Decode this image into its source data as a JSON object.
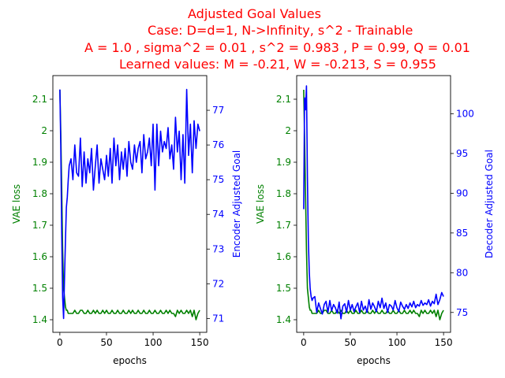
{
  "title_lines": [
    "Adjusted Goal Values",
    "Case: D=d=1, N->Infinity, s^2 - Trainable",
    "A = 1.0 , sigma^2 = 0.01 , s^2 = 0.983 , P = 0.99, Q = 0.01",
    "Learned values: M = -0.21, W = -0.213, S = 0.955"
  ],
  "colors": {
    "title": "#ff0000",
    "loss": "#008000",
    "goal": "#0000ff",
    "axis": "#000000"
  },
  "chart_data": [
    {
      "type": "line",
      "xlabel": "epochs",
      "ylabel_left": "VAE loss",
      "ylabel_right": "Encoder Adjusted Goal",
      "xlim": [
        -7.5,
        157.5
      ],
      "xticks": [
        0,
        50,
        100,
        150
      ],
      "ylim_left": [
        1.36,
        2.175
      ],
      "yticks_left": [
        1.4,
        1.5,
        1.6,
        1.7,
        1.8,
        1.9,
        2.0,
        2.1
      ],
      "ylim_right": [
        70.6,
        78.0
      ],
      "yticks_right": [
        71,
        72,
        73,
        74,
        75,
        76,
        77
      ],
      "series": [
        {
          "axis": "left",
          "color": "#008000",
          "x": [
            0,
            1,
            2,
            3,
            4,
            5,
            6,
            7,
            8,
            9,
            10,
            12,
            14,
            16,
            18,
            20,
            22,
            24,
            26,
            28,
            30,
            32,
            34,
            36,
            38,
            40,
            42,
            44,
            46,
            48,
            50,
            52,
            54,
            56,
            58,
            60,
            62,
            64,
            66,
            68,
            70,
            72,
            74,
            76,
            78,
            80,
            82,
            84,
            86,
            88,
            90,
            92,
            94,
            96,
            98,
            100,
            102,
            104,
            106,
            108,
            110,
            112,
            114,
            116,
            118,
            120,
            122,
            124,
            126,
            128,
            130,
            132,
            134,
            136,
            138,
            140,
            142,
            144,
            146,
            148,
            150
          ],
          "y": [
            2.13,
            2.0,
            1.82,
            1.62,
            1.5,
            1.47,
            1.44,
            1.43,
            1.43,
            1.42,
            1.42,
            1.42,
            1.42,
            1.43,
            1.42,
            1.42,
            1.43,
            1.43,
            1.42,
            1.42,
            1.43,
            1.42,
            1.42,
            1.43,
            1.42,
            1.43,
            1.42,
            1.42,
            1.43,
            1.42,
            1.43,
            1.42,
            1.42,
            1.43,
            1.42,
            1.42,
            1.43,
            1.42,
            1.42,
            1.43,
            1.42,
            1.42,
            1.43,
            1.42,
            1.43,
            1.42,
            1.42,
            1.43,
            1.42,
            1.42,
            1.43,
            1.42,
            1.42,
            1.43,
            1.42,
            1.42,
            1.43,
            1.42,
            1.42,
            1.43,
            1.42,
            1.42,
            1.43,
            1.42,
            1.43,
            1.42,
            1.42,
            1.41,
            1.43,
            1.42,
            1.43,
            1.42,
            1.42,
            1.43,
            1.42,
            1.43,
            1.41,
            1.43,
            1.4,
            1.42,
            1.43
          ]
        },
        {
          "axis": "right",
          "color": "#0000ff",
          "x": [
            0,
            1,
            2,
            3,
            4,
            5,
            6,
            7,
            8,
            9,
            10,
            12,
            14,
            16,
            18,
            20,
            22,
            24,
            26,
            28,
            30,
            32,
            34,
            36,
            38,
            40,
            42,
            44,
            46,
            48,
            50,
            52,
            54,
            56,
            58,
            60,
            62,
            64,
            66,
            68,
            70,
            72,
            74,
            76,
            78,
            80,
            82,
            84,
            86,
            88,
            90,
            92,
            94,
            96,
            98,
            100,
            102,
            104,
            106,
            108,
            110,
            112,
            114,
            116,
            118,
            120,
            122,
            124,
            126,
            128,
            130,
            132,
            134,
            136,
            138,
            140,
            142,
            144,
            146,
            148,
            150
          ],
          "y": [
            77.6,
            76.0,
            73.5,
            71.6,
            71.0,
            72.2,
            73.3,
            74.2,
            74.5,
            75.0,
            75.4,
            75.6,
            75.0,
            76.0,
            75.2,
            75.1,
            76.2,
            74.8,
            75.8,
            74.9,
            75.6,
            75.2,
            75.9,
            74.7,
            75.4,
            76.0,
            74.9,
            75.6,
            75.3,
            75.0,
            75.7,
            75.1,
            75.9,
            74.9,
            76.2,
            75.4,
            76.0,
            75.0,
            75.8,
            75.3,
            75.9,
            75.1,
            76.1,
            75.5,
            75.3,
            76.0,
            75.5,
            75.9,
            76.1,
            75.2,
            76.3,
            75.6,
            75.8,
            76.2,
            75.4,
            76.6,
            74.7,
            76.6,
            75.4,
            76.4,
            75.8,
            76.1,
            75.9,
            76.5,
            75.6,
            76.0,
            75.3,
            76.8,
            75.8,
            76.4,
            75.0,
            76.3,
            74.9,
            77.6,
            75.7,
            76.6,
            75.2,
            76.7,
            75.9,
            76.6,
            76.4
          ]
        }
      ]
    },
    {
      "type": "line",
      "xlabel": "epochs",
      "ylabel_left": "VAE loss",
      "ylabel_right": "Decoder Adjusted Goal",
      "xlim": [
        -7.5,
        157.5
      ],
      "xticks": [
        0,
        50,
        100,
        150
      ],
      "ylim_left": [
        1.36,
        2.175
      ],
      "yticks_left": [
        1.4,
        1.5,
        1.6,
        1.7,
        1.8,
        1.9,
        2.0,
        2.1
      ],
      "ylim_right": [
        72.5,
        104.8
      ],
      "yticks_right": [
        75,
        80,
        85,
        90,
        95,
        100
      ],
      "series": [
        {
          "axis": "left",
          "color": "#008000",
          "x": [
            0,
            1,
            2,
            3,
            4,
            5,
            6,
            7,
            8,
            9,
            10,
            12,
            14,
            16,
            18,
            20,
            22,
            24,
            26,
            28,
            30,
            32,
            34,
            36,
            38,
            40,
            42,
            44,
            46,
            48,
            50,
            52,
            54,
            56,
            58,
            60,
            62,
            64,
            66,
            68,
            70,
            72,
            74,
            76,
            78,
            80,
            82,
            84,
            86,
            88,
            90,
            92,
            94,
            96,
            98,
            100,
            102,
            104,
            106,
            108,
            110,
            112,
            114,
            116,
            118,
            120,
            122,
            124,
            126,
            128,
            130,
            132,
            134,
            136,
            138,
            140,
            142,
            144,
            146,
            148,
            150
          ],
          "y": [
            2.13,
            1.98,
            1.8,
            1.62,
            1.5,
            1.47,
            1.44,
            1.43,
            1.43,
            1.42,
            1.42,
            1.42,
            1.42,
            1.43,
            1.42,
            1.42,
            1.43,
            1.43,
            1.42,
            1.42,
            1.43,
            1.42,
            1.42,
            1.43,
            1.42,
            1.43,
            1.42,
            1.42,
            1.43,
            1.42,
            1.43,
            1.42,
            1.42,
            1.43,
            1.42,
            1.42,
            1.43,
            1.42,
            1.42,
            1.43,
            1.42,
            1.42,
            1.43,
            1.42,
            1.43,
            1.42,
            1.42,
            1.43,
            1.42,
            1.42,
            1.43,
            1.42,
            1.42,
            1.43,
            1.42,
            1.42,
            1.43,
            1.42,
            1.42,
            1.43,
            1.42,
            1.42,
            1.43,
            1.42,
            1.43,
            1.42,
            1.42,
            1.41,
            1.43,
            1.42,
            1.43,
            1.42,
            1.42,
            1.43,
            1.42,
            1.43,
            1.41,
            1.43,
            1.4,
            1.42,
            1.43
          ]
        },
        {
          "axis": "right",
          "color": "#0000ff",
          "x": [
            0,
            1,
            2,
            3,
            4,
            5,
            6,
            7,
            8,
            9,
            10,
            12,
            14,
            16,
            18,
            20,
            22,
            24,
            26,
            28,
            30,
            32,
            34,
            36,
            38,
            40,
            42,
            44,
            46,
            48,
            50,
            52,
            54,
            56,
            58,
            60,
            62,
            64,
            66,
            68,
            70,
            72,
            74,
            76,
            78,
            80,
            82,
            84,
            86,
            88,
            90,
            92,
            94,
            96,
            98,
            100,
            102,
            104,
            106,
            108,
            110,
            112,
            114,
            116,
            118,
            120,
            122,
            124,
            126,
            128,
            130,
            132,
            134,
            136,
            138,
            140,
            142,
            144,
            146,
            148,
            150
          ],
          "y": [
            88.0,
            102.0,
            100.5,
            103.5,
            92.0,
            84.0,
            80.0,
            78.0,
            77.0,
            76.5,
            76.8,
            77.0,
            75.0,
            76.2,
            75.5,
            74.8,
            76.0,
            76.4,
            75.0,
            76.5,
            75.2,
            76.0,
            75.6,
            74.9,
            76.3,
            74.2,
            75.8,
            76.1,
            75.0,
            76.5,
            75.3,
            76.0,
            75.1,
            75.7,
            76.2,
            75.0,
            76.4,
            75.3,
            75.8,
            75.0,
            76.6,
            75.4,
            76.2,
            75.7,
            75.1,
            76.4,
            75.6,
            76.8,
            75.5,
            76.2,
            75.0,
            76.0,
            75.8,
            75.3,
            76.5,
            75.6,
            75.1,
            76.3,
            75.8,
            75.4,
            76.0,
            75.5,
            76.2,
            75.7,
            76.4,
            75.6,
            76.0,
            75.8,
            76.5,
            75.9,
            76.2,
            76.0,
            76.6,
            75.8,
            76.4,
            76.1,
            77.3,
            76.0,
            76.6,
            77.5,
            77.0
          ]
        }
      ]
    }
  ]
}
